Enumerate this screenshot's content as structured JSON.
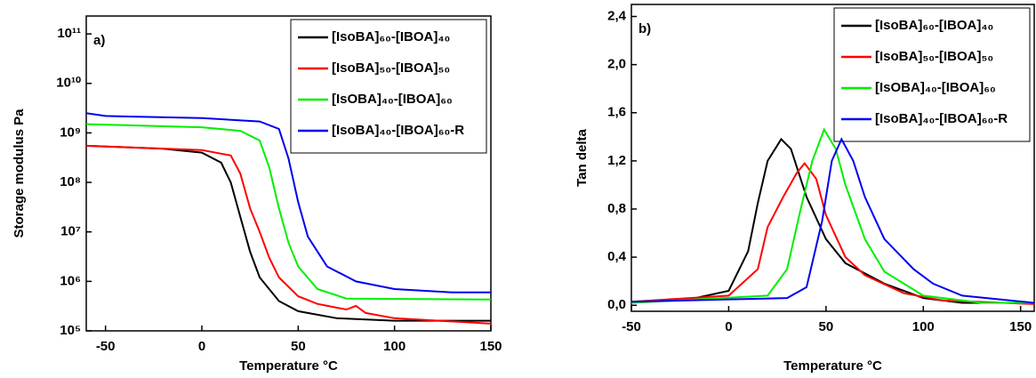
{
  "chart_data": [
    {
      "type": "line",
      "panel_label": "a)",
      "x_label": "Temperature °C",
      "y_label": "Storage modulus  Pa",
      "log_y": true,
      "xlim": [
        -60,
        150
      ],
      "xticks": [
        -50,
        0,
        50,
        100,
        150
      ],
      "ylim": [
        100000,
        230000000000
      ],
      "yticks": [
        {
          "value": 100000,
          "label": "10⁵"
        },
        {
          "value": 1000000,
          "label": "10⁶"
        },
        {
          "value": 10000000,
          "label": "10⁷"
        },
        {
          "value": 100000000,
          "label": "10⁸"
        },
        {
          "value": 1000000000,
          "label": "10⁹"
        },
        {
          "value": 10000000000,
          "label": "10¹⁰"
        },
        {
          "value": 100000000000,
          "label": "10¹¹"
        }
      ],
      "legend": "upper-right",
      "series": [
        {
          "name": "[IsoBA]₆₀-[IBOA]₄₀",
          "color": "#000000",
          "x": [
            -60,
            -20,
            0,
            10,
            15,
            20,
            25,
            30,
            40,
            50,
            70,
            100,
            150
          ],
          "values": [
            550000000,
            480000000,
            400000000,
            250000000,
            100000000,
            20000000,
            4000000,
            1200000,
            400000,
            250000,
            180000,
            160000,
            160000
          ]
        },
        {
          "name": "[IsoBA]₅₀-[IBOA]₅₀",
          "color": "#ff0000",
          "x": [
            -60,
            0,
            15,
            20,
            25,
            30,
            35,
            40,
            50,
            60,
            75,
            80,
            85,
            100,
            150
          ],
          "values": [
            550000000,
            450000000,
            350000000,
            150000000,
            30000000,
            10000000,
            3000000,
            1200000,
            500000,
            350000,
            270000,
            320000,
            230000,
            180000,
            140000
          ]
        },
        {
          "name": "[IsOBA]₄₀-[IBOA]₆₀",
          "color": "#00ee00",
          "x": [
            -60,
            0,
            20,
            30,
            35,
            40,
            45,
            50,
            60,
            75,
            150
          ],
          "values": [
            1500000000,
            1300000000,
            1100000000,
            700000000,
            200000000,
            30000000,
            6000000,
            2000000,
            700000,
            450000,
            430000
          ]
        },
        {
          "name": "[IsoBA]₄₀-[IBOA]₆₀-R",
          "color": "#0000ee",
          "x": [
            -60,
            -50,
            0,
            30,
            40,
            45,
            50,
            55,
            65,
            80,
            100,
            130,
            150
          ],
          "values": [
            2500000000,
            2200000000,
            2000000000,
            1700000000,
            1200000000,
            300000000,
            40000000,
            8000000,
            2000000,
            1000000,
            700000,
            600000,
            600000
          ]
        }
      ]
    },
    {
      "type": "line",
      "panel_label": "b)",
      "x_label": "Temperature °C",
      "y_label": "Tan delta",
      "log_y": false,
      "xlim": [
        -50,
        157
      ],
      "xticks": [
        -50,
        0,
        50,
        100,
        150
      ],
      "ylim": [
        -0.05,
        2.5
      ],
      "yticks": [
        {
          "value": 0,
          "label": "0,0"
        },
        {
          "value": 0.4,
          "label": "0,4"
        },
        {
          "value": 0.8,
          "label": "0,8"
        },
        {
          "value": 1.2,
          "label": "1,2"
        },
        {
          "value": 1.6,
          "label": "1,6"
        },
        {
          "value": 2.0,
          "label": "2,0"
        },
        {
          "value": 2.4,
          "label": "2,4"
        }
      ],
      "legend": "upper-right",
      "series": [
        {
          "name": "[IsoBA]₆₀-[IBOA]₄₀",
          "color": "#000000",
          "x": [
            -50,
            -20,
            0,
            10,
            15,
            20,
            27,
            32,
            40,
            50,
            60,
            80,
            100,
            120,
            157
          ],
          "values": [
            0.03,
            0.05,
            0.12,
            0.45,
            0.85,
            1.2,
            1.38,
            1.3,
            0.9,
            0.55,
            0.35,
            0.18,
            0.06,
            0.02,
            0.02
          ]
        },
        {
          "name": "[IsoBA]₅₀-[IBOA]₅₀",
          "color": "#ff0000",
          "x": [
            -50,
            0,
            15,
            20,
            28,
            35,
            39,
            45,
            50,
            60,
            70,
            90,
            110,
            157
          ],
          "values": [
            0.03,
            0.08,
            0.3,
            0.65,
            0.9,
            1.1,
            1.18,
            1.05,
            0.75,
            0.4,
            0.25,
            0.1,
            0.04,
            0.01
          ]
        },
        {
          "name": "[IsOBA]₄₀-[IBOA]₆₀",
          "color": "#00ee00",
          "x": [
            -50,
            20,
            30,
            37,
            43,
            49,
            55,
            60,
            70,
            80,
            100,
            130,
            157
          ],
          "values": [
            0.02,
            0.08,
            0.3,
            0.8,
            1.2,
            1.46,
            1.3,
            1.0,
            0.55,
            0.28,
            0.08,
            0.02,
            0.02
          ]
        },
        {
          "name": "[IsoBA]₄₀-[IBOA]₆₀-R",
          "color": "#0000ee",
          "x": [
            -50,
            30,
            40,
            48,
            53,
            58,
            64,
            70,
            80,
            95,
            105,
            120,
            157
          ],
          "values": [
            0.03,
            0.06,
            0.15,
            0.7,
            1.2,
            1.38,
            1.2,
            0.9,
            0.55,
            0.3,
            0.18,
            0.08,
            0.02
          ]
        }
      ]
    }
  ]
}
